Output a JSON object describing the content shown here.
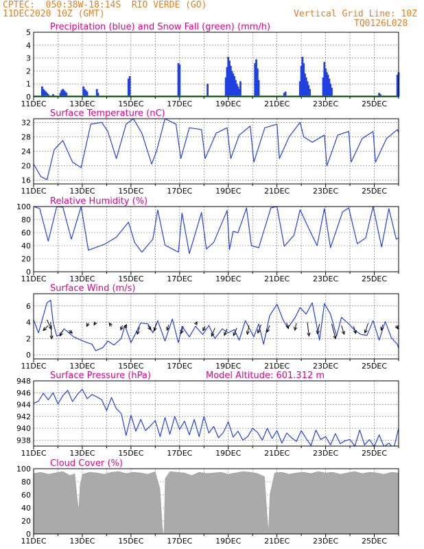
{
  "header": {
    "line1": "CPTEC:  050:38W-18:14S  RIO VERDE (GO)",
    "line2": "11DEC2020 10Z (GMT)",
    "grid_note": "Vertical Grid Line: 10Z",
    "code": "TQ0126L028"
  },
  "colors": {
    "header": "#e08020",
    "title": "#e0008c",
    "line": "#2040e0",
    "green": "#00a000",
    "cloud": "#aaaaaa"
  },
  "x_ticks": [
    "11DEC",
    "13DEC",
    "15DEC",
    "17DEC",
    "19DEC",
    "21DEC",
    "23DEC",
    "25DEC"
  ],
  "chart_data": [
    {
      "type": "bar",
      "title": "Precipitation (blue) and Snow Fall (green) (mm/h)",
      "ylim": [
        0,
        5
      ],
      "yticks": [
        0,
        1,
        2,
        3,
        4,
        5
      ],
      "x_unit": "days since 11DEC 10Z",
      "series": [
        {
          "name": "Precipitation",
          "color": "#2040e0",
          "x": [
            0.35,
            0.4,
            0.45,
            0.5,
            0.55,
            0.6,
            0.65,
            0.8,
            0.85,
            1.1,
            1.15,
            1.2,
            1.25,
            1.3,
            1.35,
            2.05,
            2.1,
            2.15,
            2.2,
            2.6,
            2.65,
            3.9,
            3.95,
            5.95,
            6.0,
            7.15,
            7.9,
            7.95,
            8.0,
            8.05,
            8.1,
            8.15,
            8.2,
            8.25,
            8.3,
            8.35,
            8.4,
            8.45,
            8.5,
            9.1,
            9.15,
            9.2,
            9.25,
            10.3,
            10.35,
            10.95,
            11.0,
            11.05,
            11.1,
            11.15,
            11.2,
            11.25,
            11.3,
            11.35,
            11.9,
            11.95,
            12.0,
            12.05,
            12.1,
            12.15,
            12.2,
            12.25,
            14.2,
            14.25,
            14.95,
            15.0
          ],
          "values": [
            0.8,
            0.6,
            0.5,
            0.4,
            0.3,
            0.2,
            0.1,
            0.2,
            0.1,
            0.3,
            0.5,
            0.6,
            0.5,
            0.4,
            0.3,
            0.8,
            0.6,
            0.5,
            0.4,
            0.6,
            0.3,
            1.4,
            1.6,
            2.6,
            2.5,
            1.0,
            1.5,
            2.3,
            3.1,
            2.8,
            2.4,
            2.0,
            1.8,
            1.6,
            1.3,
            1.0,
            0.8,
            0.6,
            1.2,
            2.6,
            2.9,
            2.2,
            1.3,
            0.3,
            0.4,
            1.2,
            2.4,
            3.1,
            2.6,
            1.8,
            1.5,
            1.2,
            0.9,
            0.6,
            1.5,
            2.7,
            2.2,
            1.9,
            1.7,
            1.4,
            1.0,
            0.7,
            0.3,
            0.2,
            1.7,
            1.9
          ]
        }
      ]
    },
    {
      "type": "line",
      "title": "Surface Temperature (nC)",
      "ylim": [
        15,
        33
      ],
      "yticks": [
        16,
        20,
        24,
        28,
        32
      ],
      "x": [
        0,
        0.3,
        0.55,
        0.85,
        1.2,
        1.6,
        1.95,
        2.35,
        2.8,
        3.05,
        3.4,
        3.8,
        4.1,
        4.45,
        4.85,
        5.05,
        5.4,
        5.85,
        6.05,
        6.4,
        6.9,
        7.05,
        7.5,
        7.95,
        8.1,
        8.45,
        8.9,
        9.05,
        9.5,
        10.0,
        10.1,
        10.5,
        10.95,
        11.1,
        11.45,
        11.95,
        12.05,
        12.5,
        12.95,
        13.05,
        13.5,
        13.95,
        14.05,
        14.5,
        14.95,
        15.0
      ],
      "values": [
        20.5,
        17.0,
        16.2,
        24.5,
        27.0,
        21.0,
        19.5,
        31.5,
        32.0,
        29.5,
        22.0,
        31.5,
        33.0,
        29.0,
        20.5,
        24.0,
        33.0,
        31.5,
        22.0,
        30.5,
        30.0,
        22.0,
        29.0,
        30.5,
        22.0,
        28.5,
        31.0,
        21.0,
        30.5,
        31.5,
        22.0,
        28.0,
        32.0,
        28.0,
        26.5,
        28.5,
        20.0,
        28.5,
        29.5,
        21.0,
        27.5,
        29.5,
        21.0,
        27.5,
        30.0,
        29.2
      ]
    },
    {
      "type": "line",
      "title": "Relative Humidity (%)",
      "ylim": [
        0,
        100
      ],
      "yticks": [
        0,
        20,
        40,
        60,
        80,
        100
      ],
      "x": [
        0,
        0.25,
        0.6,
        0.95,
        1.2,
        1.55,
        1.95,
        2.25,
        2.9,
        3.4,
        3.9,
        4.15,
        4.45,
        4.9,
        5.1,
        5.4,
        5.95,
        6.1,
        6.4,
        6.9,
        7.1,
        7.4,
        7.95,
        8.05,
        8.2,
        8.4,
        8.75,
        8.95,
        9.25,
        9.75,
        10.0,
        10.3,
        10.7,
        10.95,
        11.3,
        11.65,
        11.95,
        12.2,
        12.7,
        12.95,
        13.3,
        13.65,
        13.95,
        14.3,
        14.6,
        14.9,
        15.0
      ],
      "values": [
        100,
        97,
        47,
        100,
        99,
        50,
        100,
        33,
        42,
        53,
        76,
        45,
        30,
        50,
        95,
        41,
        30,
        90,
        28,
        91,
        35,
        45,
        94,
        34,
        62,
        60,
        98,
        40,
        37,
        98,
        100,
        39,
        56,
        95,
        67,
        40,
        97,
        37,
        92,
        98,
        43,
        52,
        100,
        38,
        97,
        50,
        52
      ]
    },
    {
      "type": "line",
      "title": "Surface Wind (m/s)",
      "ylim": [
        -0.5,
        7.5
      ],
      "yticks": [
        0,
        2,
        4,
        6
      ],
      "x": [
        0,
        0.2,
        0.55,
        0.7,
        0.8,
        0.95,
        1.1,
        1.25,
        1.45,
        1.65,
        1.95,
        2.2,
        2.4,
        2.55,
        2.85,
        3.05,
        3.3,
        3.6,
        3.75,
        4.0,
        4.4,
        4.7,
        4.9,
        5.1,
        5.4,
        5.7,
        5.95,
        6.1,
        6.4,
        6.65,
        6.95,
        7.2,
        7.45,
        7.75,
        8.0,
        8.25,
        8.45,
        8.7,
        9.05,
        9.25,
        9.45,
        9.7,
        10.0,
        10.25,
        10.45,
        10.75,
        10.95,
        11.2,
        11.45,
        11.75,
        11.95,
        12.2,
        12.45,
        12.65,
        12.95,
        13.2,
        13.45,
        13.7,
        13.95,
        14.2,
        14.45,
        14.7,
        14.95,
        15.0
      ],
      "values": [
        4.3,
        2.7,
        6.4,
        6.7,
        4.0,
        2.3,
        2.5,
        3.2,
        2.7,
        2.2,
        1.8,
        1.5,
        1.3,
        0.5,
        0.9,
        1.7,
        1.2,
        2.0,
        3.6,
        1.5,
        3.9,
        3.8,
        2.7,
        4.2,
        1.7,
        4.4,
        1.5,
        3.5,
        2.2,
        3.5,
        2.5,
        3.6,
        2.0,
        3.2,
        2.7,
        3.1,
        1.8,
        4.2,
        2.2,
        3.8,
        1.3,
        4.8,
        6.2,
        4.3,
        3.3,
        4.6,
        5.8,
        5.0,
        6.4,
        1.8,
        6.3,
        5.0,
        2.3,
        4.6,
        3.8,
        3.0,
        2.5,
        2.4,
        4.2,
        1.8,
        4.1,
        2.1,
        1.3,
        0.8
      ],
      "vectors": [
        [
          0.55,
          4.3,
          0.8,
          -1.7
        ],
        [
          0.6,
          3.6,
          -0.9,
          -0.9
        ],
        [
          0.7,
          4.0,
          0.2,
          -3.0
        ],
        [
          1.2,
          3.0,
          -0.5,
          -1.0
        ],
        [
          1.45,
          3.0,
          0.6,
          -0.5
        ],
        [
          2.25,
          3.9,
          -0.3,
          -0.6
        ],
        [
          2.55,
          4.0,
          -0.3,
          -0.5
        ],
        [
          3.2,
          3.5,
          -0.4,
          0.6
        ],
        [
          3.75,
          3.3,
          0.3,
          0.6
        ],
        [
          3.65,
          3.6,
          -0.3,
          -0.8
        ],
        [
          4.35,
          3.4,
          -0.4,
          -1.3
        ],
        [
          4.7,
          3.6,
          0.5,
          -0.8
        ],
        [
          5.05,
          3.9,
          -0.4,
          -1.4
        ],
        [
          5.55,
          3.7,
          -0.3,
          -1.0
        ],
        [
          6.15,
          3.5,
          -0.4,
          -1.3
        ],
        [
          6.65,
          3.7,
          0.3,
          0.5
        ],
        [
          7.05,
          3.5,
          -0.4,
          -0.8
        ],
        [
          7.45,
          3.3,
          -0.6,
          -1.5
        ],
        [
          7.95,
          3.2,
          -0.5,
          -1.2
        ],
        [
          8.35,
          3.3,
          -0.6,
          -1.4
        ],
        [
          8.85,
          3.6,
          -0.3,
          -1.6
        ],
        [
          9.35,
          3.7,
          -0.6,
          -1.5
        ],
        [
          9.7,
          3.6,
          -0.5,
          -1.2
        ],
        [
          10.4,
          3.9,
          0.3,
          -1.0
        ],
        [
          10.8,
          3.9,
          -0.3,
          -1.3
        ],
        [
          11.25,
          4.0,
          0.3,
          -2.5
        ],
        [
          11.75,
          3.8,
          -0.4,
          -1.8
        ],
        [
          12.25,
          3.8,
          0.7,
          -2.7
        ],
        [
          12.65,
          3.6,
          0.5,
          -1.6
        ],
        [
          13.15,
          3.5,
          0.4,
          -1.3
        ],
        [
          13.75,
          3.9,
          -0.6,
          -1.8
        ],
        [
          14.35,
          3.7,
          -0.3,
          -1.0
        ],
        [
          14.9,
          3.6,
          0.3,
          -0.6
        ]
      ]
    },
    {
      "type": "line",
      "title": "Surface Pressure (hPa)",
      "annotation": "Model Altitude: 601.312 m",
      "ylim": [
        937,
        948
      ],
      "yticks": [
        938,
        940,
        942,
        944,
        946,
        948
      ],
      "x": [
        0,
        0.2,
        0.4,
        0.6,
        0.8,
        1.0,
        1.2,
        1.4,
        1.6,
        1.8,
        2.0,
        2.2,
        2.4,
        2.6,
        2.8,
        3.0,
        3.2,
        3.4,
        3.6,
        3.8,
        4.0,
        4.2,
        4.4,
        4.6,
        4.8,
        5.0,
        5.2,
        5.4,
        5.6,
        5.8,
        6.0,
        6.2,
        6.4,
        6.6,
        6.8,
        7.0,
        7.2,
        7.4,
        7.6,
        7.8,
        8.0,
        8.2,
        8.4,
        8.6,
        8.8,
        9.0,
        9.2,
        9.4,
        9.6,
        9.8,
        10.0,
        10.2,
        10.4,
        10.6,
        10.8,
        11.0,
        11.2,
        11.4,
        11.6,
        11.8,
        12.0,
        12.2,
        12.4,
        12.6,
        12.8,
        13.0,
        13.2,
        13.4,
        13.6,
        13.8,
        14.0,
        14.2,
        14.4,
        14.6,
        14.8,
        15.0
      ],
      "values": [
        944.2,
        944.6,
        945.9,
        944.8,
        946.0,
        944.1,
        945.5,
        946.4,
        944.5,
        945.7,
        946.6,
        945.0,
        945.7,
        945.3,
        944.8,
        943.0,
        945.2,
        943.3,
        942.5,
        938.8,
        942.2,
        939.5,
        941.5,
        939.6,
        940.4,
        941.3,
        938.6,
        941.8,
        939.0,
        942.0,
        939.8,
        941.2,
        938.9,
        941.5,
        938.6,
        942.0,
        939.2,
        940.3,
        938.4,
        939.3,
        941.1,
        938.5,
        939.5,
        938.0,
        938.6,
        940.0,
        939.3,
        938.0,
        940.0,
        938.3,
        939.6,
        937.5,
        939.2,
        938.4,
        937.8,
        939.6,
        938.3,
        937.1,
        939.7,
        938.1,
        938.6,
        937.2,
        939.1,
        937.4,
        937.9,
        938.1,
        937.0,
        939.7,
        937.2,
        938.1,
        936.9,
        938.9,
        936.9,
        937.5,
        936.6,
        940.0
      ]
    },
    {
      "type": "area",
      "title": "Cloud Cover (%)",
      "ylim": [
        0,
        100
      ],
      "yticks": [
        0,
        20,
        40,
        60,
        80,
        100
      ],
      "x": [
        0,
        0.3,
        0.6,
        0.9,
        1.2,
        1.5,
        1.7,
        1.8,
        1.85,
        1.9,
        2.0,
        2.3,
        2.6,
        2.9,
        3.2,
        3.5,
        3.8,
        4.1,
        4.4,
        4.7,
        5.0,
        5.2,
        5.3,
        5.35,
        5.4,
        5.6,
        5.9,
        6.2,
        6.5,
        6.8,
        7.1,
        7.4,
        7.7,
        8.0,
        8.3,
        8.6,
        8.9,
        9.2,
        9.5,
        9.6,
        9.65,
        9.7,
        9.9,
        10.2,
        10.5,
        10.8,
        11.1,
        11.4,
        11.7,
        12.0,
        12.3,
        12.6,
        12.9,
        13.2,
        13.5,
        13.8,
        14.1,
        14.4,
        14.7,
        15.0
      ],
      "values": [
        93,
        95,
        92,
        94,
        96,
        90,
        93,
        55,
        40,
        75,
        92,
        95,
        94,
        92,
        95,
        96,
        93,
        95,
        94,
        92,
        96,
        70,
        10,
        0,
        85,
        96,
        95,
        94,
        90,
        95,
        93,
        94,
        95,
        92,
        94,
        96,
        95,
        93,
        88,
        30,
        8,
        60,
        94,
        95,
        92,
        94,
        95,
        93,
        96,
        94,
        95,
        92,
        94,
        96,
        93,
        95,
        94,
        92,
        95,
        94
      ]
    }
  ]
}
